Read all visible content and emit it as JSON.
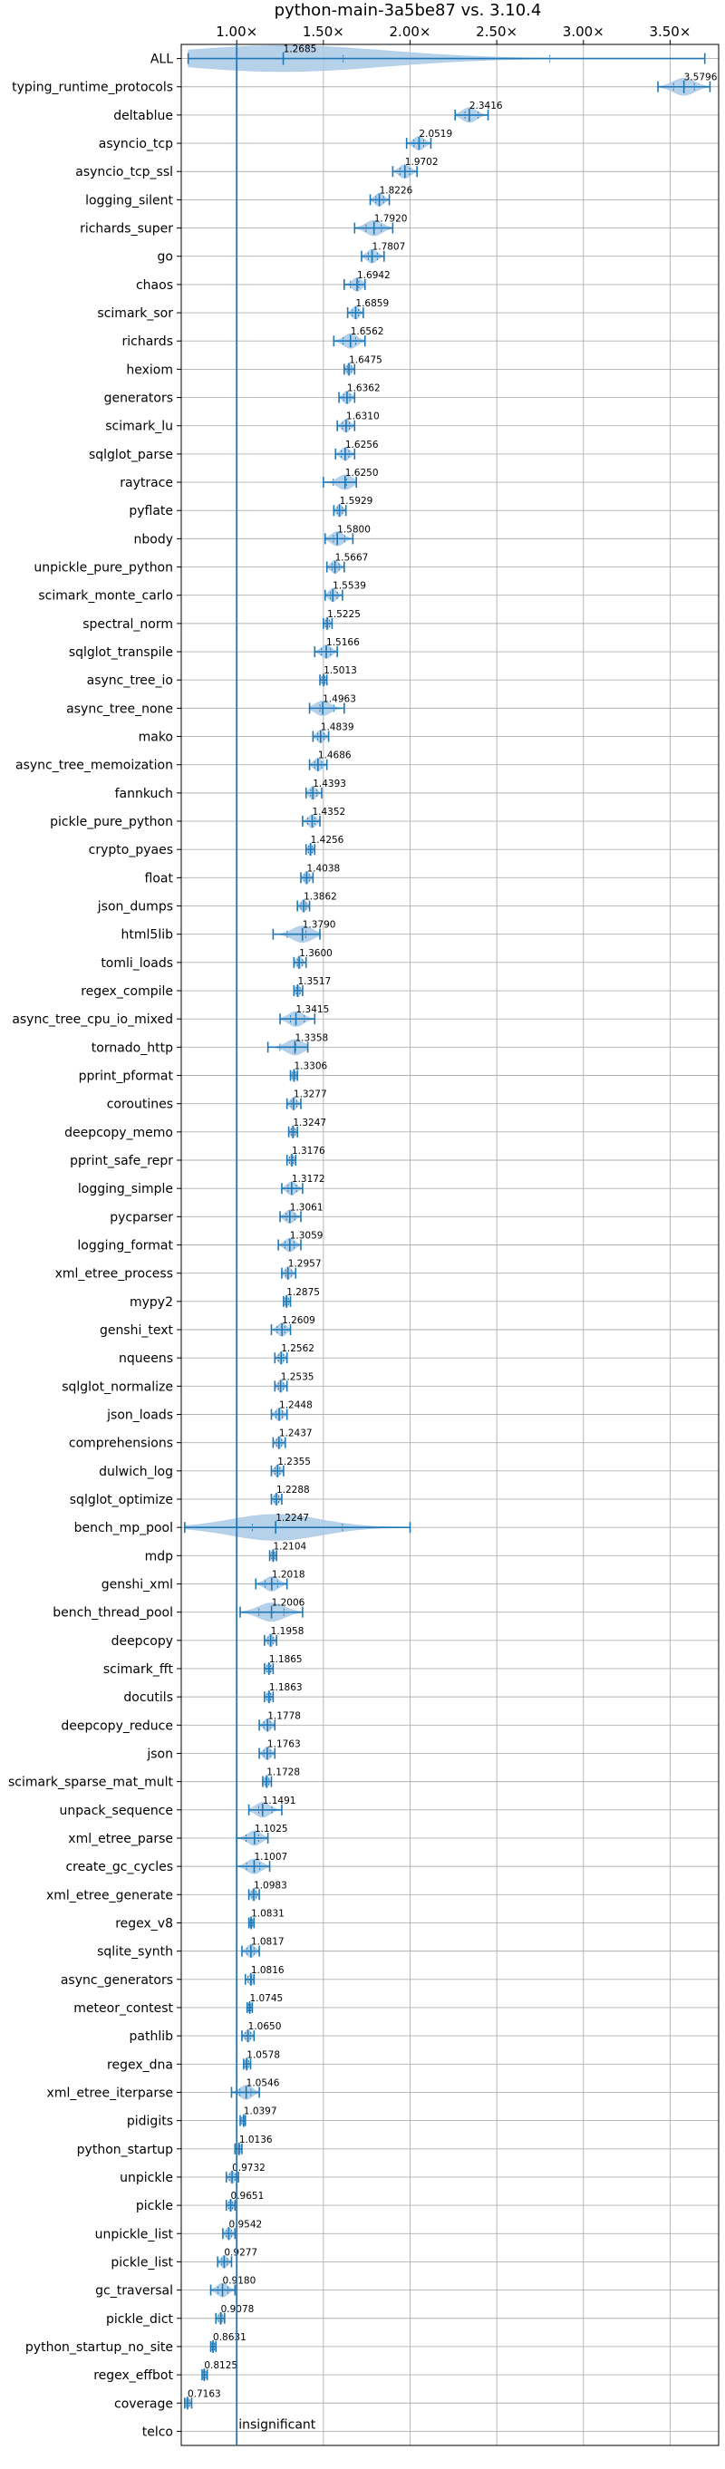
{
  "chart_data": {
    "type": "violin",
    "title": "python-main-3a5be87 vs. 3.10.4",
    "xlim": [
      0.68,
      3.78
    ],
    "x_ticks": [
      1.0,
      1.5,
      2.0,
      2.5,
      3.0,
      3.5
    ],
    "x_tick_labels": [
      "1.00×",
      "1.50×",
      "2.00×",
      "2.50×",
      "3.00×",
      "3.50×"
    ],
    "grid": true,
    "reference_line": 1.0,
    "annotation": "insignificant",
    "colors": {
      "line": "#1f77b4",
      "violin": "#a9c9e6",
      "grid": "#b0b0b0"
    },
    "rows": [
      {
        "name": "ALL",
        "value": 1.2685,
        "label": "1.2685",
        "min": 0.72,
        "max": 3.7
      },
      {
        "name": "typing_runtime_protocols",
        "value": 3.5796,
        "label": "3.5796",
        "min": 3.43,
        "max": 3.73
      },
      {
        "name": "deltablue",
        "value": 2.3416,
        "label": "2.3416",
        "min": 2.26,
        "max": 2.45
      },
      {
        "name": "asyncio_tcp",
        "value": 2.0519,
        "label": "2.0519",
        "min": 1.98,
        "max": 2.12
      },
      {
        "name": "asyncio_tcp_ssl",
        "value": 1.9702,
        "label": "1.9702",
        "min": 1.9,
        "max": 2.04
      },
      {
        "name": "logging_silent",
        "value": 1.8226,
        "label": "1.8226",
        "min": 1.77,
        "max": 1.88
      },
      {
        "name": "richards_super",
        "value": 1.792,
        "label": "1.7920",
        "min": 1.68,
        "max": 1.9
      },
      {
        "name": "go",
        "value": 1.7807,
        "label": "1.7807",
        "min": 1.72,
        "max": 1.85
      },
      {
        "name": "chaos",
        "value": 1.6942,
        "label": "1.6942",
        "min": 1.62,
        "max": 1.74
      },
      {
        "name": "scimark_sor",
        "value": 1.6859,
        "label": "1.6859",
        "min": 1.64,
        "max": 1.73
      },
      {
        "name": "richards",
        "value": 1.6562,
        "label": "1.6562",
        "min": 1.56,
        "max": 1.74
      },
      {
        "name": "hexiom",
        "value": 1.6475,
        "label": "1.6475",
        "min": 1.62,
        "max": 1.68
      },
      {
        "name": "generators",
        "value": 1.6362,
        "label": "1.6362",
        "min": 1.59,
        "max": 1.68
      },
      {
        "name": "scimark_lu",
        "value": 1.631,
        "label": "1.6310",
        "min": 1.58,
        "max": 1.68
      },
      {
        "name": "sqlglot_parse",
        "value": 1.6256,
        "label": "1.6256",
        "min": 1.57,
        "max": 1.68
      },
      {
        "name": "raytrace",
        "value": 1.625,
        "label": "1.6250",
        "min": 1.5,
        "max": 1.69
      },
      {
        "name": "pyflate",
        "value": 1.5929,
        "label": "1.5929",
        "min": 1.56,
        "max": 1.63
      },
      {
        "name": "nbody",
        "value": 1.58,
        "label": "1.5800",
        "min": 1.51,
        "max": 1.67
      },
      {
        "name": "unpickle_pure_python",
        "value": 1.5667,
        "label": "1.5667",
        "min": 1.52,
        "max": 1.62
      },
      {
        "name": "scimark_monte_carlo",
        "value": 1.5539,
        "label": "1.5539",
        "min": 1.51,
        "max": 1.61
      },
      {
        "name": "spectral_norm",
        "value": 1.5225,
        "label": "1.5225",
        "min": 1.5,
        "max": 1.55
      },
      {
        "name": "sqlglot_transpile",
        "value": 1.5166,
        "label": "1.5166",
        "min": 1.45,
        "max": 1.58
      },
      {
        "name": "async_tree_io",
        "value": 1.5013,
        "label": "1.5013",
        "min": 1.48,
        "max": 1.52
      },
      {
        "name": "async_tree_none",
        "value": 1.4963,
        "label": "1.4963",
        "min": 1.42,
        "max": 1.62
      },
      {
        "name": "mako",
        "value": 1.4839,
        "label": "1.4839",
        "min": 1.44,
        "max": 1.53
      },
      {
        "name": "async_tree_memoization",
        "value": 1.4686,
        "label": "1.4686",
        "min": 1.42,
        "max": 1.52
      },
      {
        "name": "fannkuch",
        "value": 1.4393,
        "label": "1.4393",
        "min": 1.4,
        "max": 1.49
      },
      {
        "name": "pickle_pure_python",
        "value": 1.4352,
        "label": "1.4352",
        "min": 1.38,
        "max": 1.48
      },
      {
        "name": "crypto_pyaes",
        "value": 1.4256,
        "label": "1.4256",
        "min": 1.4,
        "max": 1.45
      },
      {
        "name": "float",
        "value": 1.4038,
        "label": "1.4038",
        "min": 1.37,
        "max": 1.44
      },
      {
        "name": "json_dumps",
        "value": 1.3862,
        "label": "1.3862",
        "min": 1.35,
        "max": 1.42
      },
      {
        "name": "html5lib",
        "value": 1.379,
        "label": "1.3790",
        "min": 1.21,
        "max": 1.48
      },
      {
        "name": "tomli_loads",
        "value": 1.36,
        "label": "1.3600",
        "min": 1.33,
        "max": 1.4
      },
      {
        "name": "regex_compile",
        "value": 1.3517,
        "label": "1.3517",
        "min": 1.33,
        "max": 1.38
      },
      {
        "name": "async_tree_cpu_io_mixed",
        "value": 1.3415,
        "label": "1.3415",
        "min": 1.25,
        "max": 1.45
      },
      {
        "name": "tornado_http",
        "value": 1.3358,
        "label": "1.3358",
        "min": 1.18,
        "max": 1.41
      },
      {
        "name": "pprint_pformat",
        "value": 1.3306,
        "label": "1.3306",
        "min": 1.31,
        "max": 1.35
      },
      {
        "name": "coroutines",
        "value": 1.3277,
        "label": "1.3277",
        "min": 1.29,
        "max": 1.37
      },
      {
        "name": "deepcopy_memo",
        "value": 1.3247,
        "label": "1.3247",
        "min": 1.3,
        "max": 1.35
      },
      {
        "name": "pprint_safe_repr",
        "value": 1.3176,
        "label": "1.3176",
        "min": 1.29,
        "max": 1.34
      },
      {
        "name": "logging_simple",
        "value": 1.3172,
        "label": "1.3172",
        "min": 1.26,
        "max": 1.38
      },
      {
        "name": "pycparser",
        "value": 1.3061,
        "label": "1.3061",
        "min": 1.25,
        "max": 1.37
      },
      {
        "name": "logging_format",
        "value": 1.3059,
        "label": "1.3059",
        "min": 1.24,
        "max": 1.37
      },
      {
        "name": "xml_etree_process",
        "value": 1.2957,
        "label": "1.2957",
        "min": 1.26,
        "max": 1.34
      },
      {
        "name": "mypy2",
        "value": 1.2875,
        "label": "1.2875",
        "min": 1.27,
        "max": 1.31
      },
      {
        "name": "genshi_text",
        "value": 1.2609,
        "label": "1.2609",
        "min": 1.2,
        "max": 1.31
      },
      {
        "name": "nqueens",
        "value": 1.2562,
        "label": "1.2562",
        "min": 1.22,
        "max": 1.29
      },
      {
        "name": "sqlglot_normalize",
        "value": 1.2535,
        "label": "1.2535",
        "min": 1.22,
        "max": 1.29
      },
      {
        "name": "json_loads",
        "value": 1.2448,
        "label": "1.2448",
        "min": 1.2,
        "max": 1.29
      },
      {
        "name": "comprehensions",
        "value": 1.2437,
        "label": "1.2437",
        "min": 1.21,
        "max": 1.28
      },
      {
        "name": "dulwich_log",
        "value": 1.2355,
        "label": "1.2355",
        "min": 1.2,
        "max": 1.27
      },
      {
        "name": "sqlglot_optimize",
        "value": 1.2288,
        "label": "1.2288",
        "min": 1.2,
        "max": 1.26
      },
      {
        "name": "bench_mp_pool",
        "value": 1.2247,
        "label": "1.2247",
        "min": 0.7,
        "max": 2.0
      },
      {
        "name": "mdp",
        "value": 1.2104,
        "label": "1.2104",
        "min": 1.19,
        "max": 1.23
      },
      {
        "name": "genshi_xml",
        "value": 1.2018,
        "label": "1.2018",
        "min": 1.11,
        "max": 1.29
      },
      {
        "name": "bench_thread_pool",
        "value": 1.2006,
        "label": "1.2006",
        "min": 1.02,
        "max": 1.38
      },
      {
        "name": "deepcopy",
        "value": 1.1958,
        "label": "1.1958",
        "min": 1.16,
        "max": 1.23
      },
      {
        "name": "scimark_fft",
        "value": 1.1865,
        "label": "1.1865",
        "min": 1.16,
        "max": 1.21
      },
      {
        "name": "docutils",
        "value": 1.1863,
        "label": "1.1863",
        "min": 1.16,
        "max": 1.21
      },
      {
        "name": "deepcopy_reduce",
        "value": 1.1778,
        "label": "1.1778",
        "min": 1.13,
        "max": 1.22
      },
      {
        "name": "json",
        "value": 1.1763,
        "label": "1.1763",
        "min": 1.13,
        "max": 1.22
      },
      {
        "name": "scimark_sparse_mat_mult",
        "value": 1.1728,
        "label": "1.1728",
        "min": 1.15,
        "max": 1.2
      },
      {
        "name": "unpack_sequence",
        "value": 1.1491,
        "label": "1.1491",
        "min": 1.07,
        "max": 1.26
      },
      {
        "name": "xml_etree_parse",
        "value": 1.1025,
        "label": "1.1025",
        "min": 1.0,
        "max": 1.18
      },
      {
        "name": "create_gc_cycles",
        "value": 1.1007,
        "label": "1.1007",
        "min": 1.0,
        "max": 1.19
      },
      {
        "name": "xml_etree_generate",
        "value": 1.0983,
        "label": "1.0983",
        "min": 1.07,
        "max": 1.13
      },
      {
        "name": "regex_v8",
        "value": 1.0831,
        "label": "1.0831",
        "min": 1.07,
        "max": 1.1
      },
      {
        "name": "sqlite_synth",
        "value": 1.0817,
        "label": "1.0817",
        "min": 1.03,
        "max": 1.13
      },
      {
        "name": "async_generators",
        "value": 1.0816,
        "label": "1.0816",
        "min": 1.05,
        "max": 1.1
      },
      {
        "name": "meteor_contest",
        "value": 1.0745,
        "label": "1.0745",
        "min": 1.06,
        "max": 1.09
      },
      {
        "name": "pathlib",
        "value": 1.065,
        "label": "1.0650",
        "min": 1.03,
        "max": 1.1
      },
      {
        "name": "regex_dna",
        "value": 1.0578,
        "label": "1.0578",
        "min": 1.04,
        "max": 1.08
      },
      {
        "name": "xml_etree_iterparse",
        "value": 1.0546,
        "label": "1.0546",
        "min": 0.97,
        "max": 1.13
      },
      {
        "name": "pidigits",
        "value": 1.0397,
        "label": "1.0397",
        "min": 1.02,
        "max": 1.05
      },
      {
        "name": "python_startup",
        "value": 1.0136,
        "label": "1.0136",
        "min": 0.99,
        "max": 1.03
      },
      {
        "name": "unpickle",
        "value": 0.9732,
        "label": "0.9732",
        "min": 0.94,
        "max": 1.01
      },
      {
        "name": "pickle",
        "value": 0.9651,
        "label": "0.9651",
        "min": 0.94,
        "max": 0.99
      },
      {
        "name": "unpickle_list",
        "value": 0.9542,
        "label": "0.9542",
        "min": 0.92,
        "max": 0.99
      },
      {
        "name": "pickle_list",
        "value": 0.9277,
        "label": "0.9277",
        "min": 0.89,
        "max": 0.97
      },
      {
        "name": "gc_traversal",
        "value": 0.918,
        "label": "0.9180",
        "min": 0.85,
        "max": 0.99
      },
      {
        "name": "pickle_dict",
        "value": 0.9078,
        "label": "0.9078",
        "min": 0.88,
        "max": 0.93
      },
      {
        "name": "python_startup_no_site",
        "value": 0.8631,
        "label": "0.8631",
        "min": 0.85,
        "max": 0.88
      },
      {
        "name": "regex_effbot",
        "value": 0.8125,
        "label": "0.8125",
        "min": 0.8,
        "max": 0.83
      },
      {
        "name": "coverage",
        "value": 0.7163,
        "label": "0.7163",
        "min": 0.7,
        "max": 0.74
      },
      {
        "name": "telco",
        "value": null,
        "label": "",
        "min": null,
        "max": null
      }
    ]
  }
}
